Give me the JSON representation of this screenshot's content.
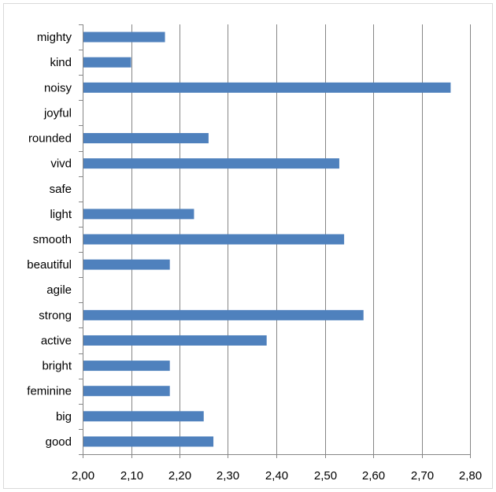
{
  "chart_data": {
    "type": "bar",
    "orientation": "horizontal",
    "title": "",
    "xlabel": "",
    "ylabel": "",
    "categories": [
      "mighty",
      "kind",
      "noisy",
      "joyful",
      "rounded",
      "vivd",
      "safe",
      "light",
      "smooth",
      "beautiful",
      "agile",
      "strong",
      "active",
      "bright",
      "feminine",
      "big",
      "good"
    ],
    "values": [
      2.17,
      2.1,
      2.76,
      null,
      2.26,
      2.53,
      null,
      2.23,
      2.54,
      2.18,
      null,
      2.58,
      2.38,
      2.18,
      2.18,
      2.25,
      2.27
    ],
    "xlim": [
      2.0,
      2.8
    ],
    "x_ticks": [
      "2,00",
      "2,10",
      "2,20",
      "2,30",
      "2,40",
      "2,50",
      "2,60",
      "2,70",
      "2,80"
    ],
    "x_tick_values": [
      2.0,
      2.1,
      2.2,
      2.3,
      2.4,
      2.5,
      2.6,
      2.7,
      2.8
    ],
    "grid": "vertical",
    "legend": "none",
    "colors": {
      "bar": "#4f81bd",
      "grid": "#868686",
      "axis": "#868686"
    }
  }
}
